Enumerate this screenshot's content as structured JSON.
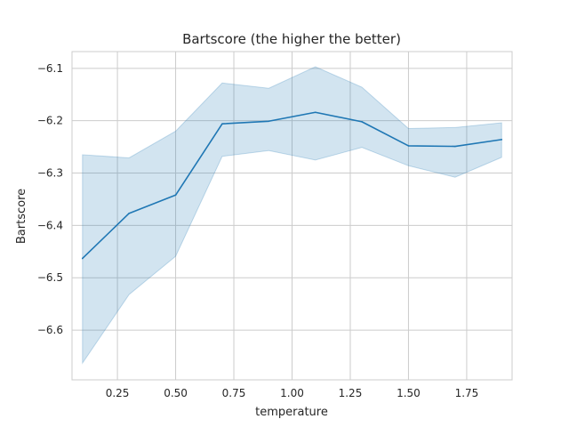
{
  "chart_data": {
    "type": "line",
    "title": "Bartscore (the higher the better)",
    "xlabel": "temperature",
    "ylabel": "Bartscore",
    "xlim": [
      0.055,
      1.945
    ],
    "ylim": [
      -6.695,
      -6.068
    ],
    "x_ticks": [
      0.25,
      0.5,
      0.75,
      1.0,
      1.25,
      1.5,
      1.75
    ],
    "x_tick_labels": [
      "0.25",
      "0.50",
      "0.75",
      "1.00",
      "1.25",
      "1.50",
      "1.75"
    ],
    "y_ticks": [
      -6.6,
      -6.5,
      -6.4,
      -6.3,
      -6.2,
      -6.1
    ],
    "y_tick_labels": [
      "−6.6",
      "−6.5",
      "−6.4",
      "−6.3",
      "−6.2",
      "−6.1"
    ],
    "grid": true,
    "line_color": "#1f77b4",
    "band_color": "#1f77b4",
    "series": [
      {
        "x": [
          0.1,
          0.3,
          0.5,
          0.7,
          0.9,
          1.1,
          1.3,
          1.5,
          1.7,
          1.9
        ],
        "values": [
          -6.463,
          -6.377,
          -6.342,
          -6.206,
          -6.201,
          -6.184,
          -6.202,
          -6.248,
          -6.249,
          -6.236
        ],
        "lower": [
          -6.663,
          -6.532,
          -6.459,
          -6.268,
          -6.257,
          -6.275,
          -6.251,
          -6.286,
          -6.308,
          -6.27
        ],
        "upper": [
          -6.265,
          -6.271,
          -6.22,
          -6.128,
          -6.138,
          -6.097,
          -6.136,
          -6.215,
          -6.213,
          -6.204
        ]
      }
    ]
  }
}
